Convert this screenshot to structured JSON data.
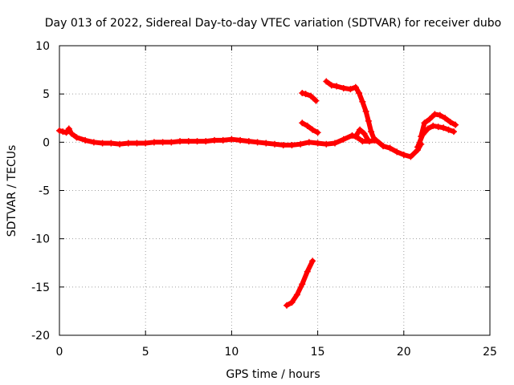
{
  "chart_data": {
    "type": "scatter",
    "title": "Day 013 of 2022, Sidereal Day-to-day VTEC variation (SDTVAR) for receiver dubo",
    "xlabel": "GPS time / hours",
    "ylabel": "SDTVAR / TECUs",
    "xlim": [
      0,
      25
    ],
    "ylim": [
      -20,
      10
    ],
    "x_ticks": [
      0,
      5,
      10,
      15,
      20,
      25
    ],
    "y_ticks": [
      -20,
      -15,
      -10,
      -5,
      0,
      5,
      10
    ],
    "x_tick_labels": [
      "0",
      "5",
      "10",
      "15",
      "20",
      "25"
    ],
    "y_tick_labels": [
      "-20",
      "-15",
      "-10",
      "-5",
      "0",
      "5",
      "10"
    ],
    "grid": true,
    "color": "#ff0000",
    "series": [
      {
        "name": "main",
        "x": [
          0.0,
          0.2,
          0.4,
          0.55,
          0.7,
          1.0,
          1.5,
          2.0,
          2.5,
          3.0,
          3.5,
          4.0,
          4.5,
          5.0,
          5.5,
          6.0,
          6.5,
          7.0,
          7.5,
          8.0,
          8.5,
          9.0,
          9.5,
          10.0,
          10.5,
          11.0,
          11.5,
          12.0,
          12.5,
          13.0,
          13.5,
          14.0,
          14.5,
          15.0,
          15.5,
          16.0,
          16.5,
          17.0,
          17.3,
          17.6,
          18.0,
          18.4,
          18.8,
          19.2,
          19.6,
          20.0,
          20.4,
          20.8,
          21.0
        ],
        "y": [
          1.2,
          1.1,
          1.0,
          1.4,
          0.9,
          0.5,
          0.2,
          0.0,
          -0.1,
          -0.1,
          -0.2,
          -0.1,
          -0.1,
          -0.1,
          0.0,
          0.0,
          0.0,
          0.1,
          0.1,
          0.1,
          0.1,
          0.2,
          0.2,
          0.3,
          0.2,
          0.1,
          0.0,
          -0.1,
          -0.2,
          -0.3,
          -0.3,
          -0.2,
          0.0,
          -0.1,
          -0.2,
          -0.1,
          0.3,
          0.7,
          0.5,
          0.1,
          0.1,
          0.2,
          -0.4,
          -0.6,
          -1.0,
          -1.3,
          -1.5,
          -0.8,
          -0.2
        ]
      },
      {
        "name": "segment-2",
        "x": [
          14.1,
          14.4,
          14.7,
          15.0
        ],
        "y": [
          2.0,
          1.7,
          1.3,
          1.0
        ]
      },
      {
        "name": "segment-3",
        "x": [
          15.5,
          15.8,
          16.1,
          16.5,
          16.9,
          17.2,
          17.4,
          17.6,
          17.8,
          17.95,
          18.1,
          18.3
        ],
        "y": [
          6.3,
          5.9,
          5.8,
          5.6,
          5.5,
          5.7,
          5.1,
          4.2,
          3.2,
          2.2,
          1.1,
          0.2
        ]
      },
      {
        "name": "segment-4",
        "x": [
          14.1,
          14.3,
          14.6,
          14.9
        ],
        "y": [
          5.1,
          5.0,
          4.8,
          4.3
        ]
      },
      {
        "name": "segment-5",
        "x": [
          17.2,
          17.45,
          17.7,
          17.9
        ],
        "y": [
          0.6,
          1.3,
          0.9,
          0.3
        ]
      },
      {
        "name": "segment-6",
        "x": [
          13.2,
          13.5,
          13.8,
          14.1,
          14.4,
          14.7
        ],
        "y": [
          -16.9,
          -16.6,
          -15.8,
          -14.7,
          -13.4,
          -12.3
        ]
      },
      {
        "name": "segment-7",
        "x": [
          21.0,
          21.2,
          21.5,
          21.8,
          22.1,
          22.4,
          22.7,
          23.0
        ],
        "y": [
          0.6,
          2.0,
          2.4,
          2.9,
          2.8,
          2.5,
          2.1,
          1.8
        ]
      },
      {
        "name": "segment-8",
        "x": [
          20.8,
          21.1,
          21.4,
          21.7,
          22.0,
          22.3,
          22.6,
          22.9
        ],
        "y": [
          -0.5,
          0.8,
          1.4,
          1.7,
          1.6,
          1.5,
          1.3,
          1.1
        ]
      }
    ]
  }
}
